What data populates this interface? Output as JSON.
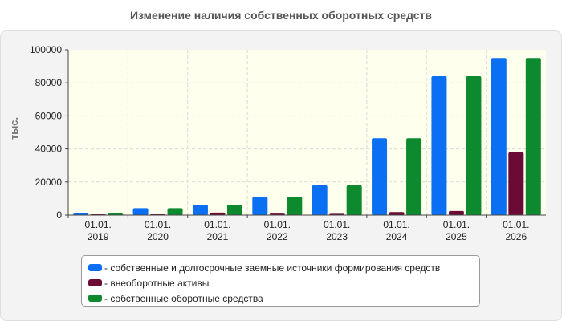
{
  "title": "Изменение наличия собственных оборотных средств",
  "chart_data": {
    "type": "bar",
    "ylabel": "тыс.",
    "ylim": [
      0,
      100000
    ],
    "yticks": [
      "0",
      "20000",
      "40000",
      "60000",
      "80000",
      "100000"
    ],
    "categories": [
      {
        "line1": "01.01.",
        "line2": "2019"
      },
      {
        "line1": "01.01.",
        "line2": "2020"
      },
      {
        "line1": "01.01.",
        "line2": "2021"
      },
      {
        "line1": "01.01.",
        "line2": "2022"
      },
      {
        "line1": "01.01.",
        "line2": "2023"
      },
      {
        "line1": "01.01.",
        "line2": "2024"
      },
      {
        "line1": "01.01.",
        "line2": "2025"
      },
      {
        "line1": "01.01.",
        "line2": "2026"
      }
    ],
    "series": [
      {
        "name": "собственные и долгосрочные заемные источники формирования средств",
        "color": "#0a6ff2",
        "values": [
          1000,
          4200,
          6300,
          11000,
          18000,
          46500,
          84000,
          95000
        ]
      },
      {
        "name": "внеоборотные активы",
        "color": "#6a0a35",
        "values": [
          300,
          400,
          1500,
          900,
          800,
          1800,
          2500,
          38000
        ]
      },
      {
        "name": "собственные оборотные средства",
        "color": "#0c8a2d",
        "values": [
          1000,
          4200,
          6300,
          11000,
          18000,
          46500,
          84000,
          95000
        ]
      }
    ],
    "grid": true,
    "legend_position": "bottom",
    "legend_labels": [
      "- собственные и долгосрочные заемные источники формирования средств",
      "- внеоборотные активы",
      "- собственные оборотные средства"
    ]
  }
}
